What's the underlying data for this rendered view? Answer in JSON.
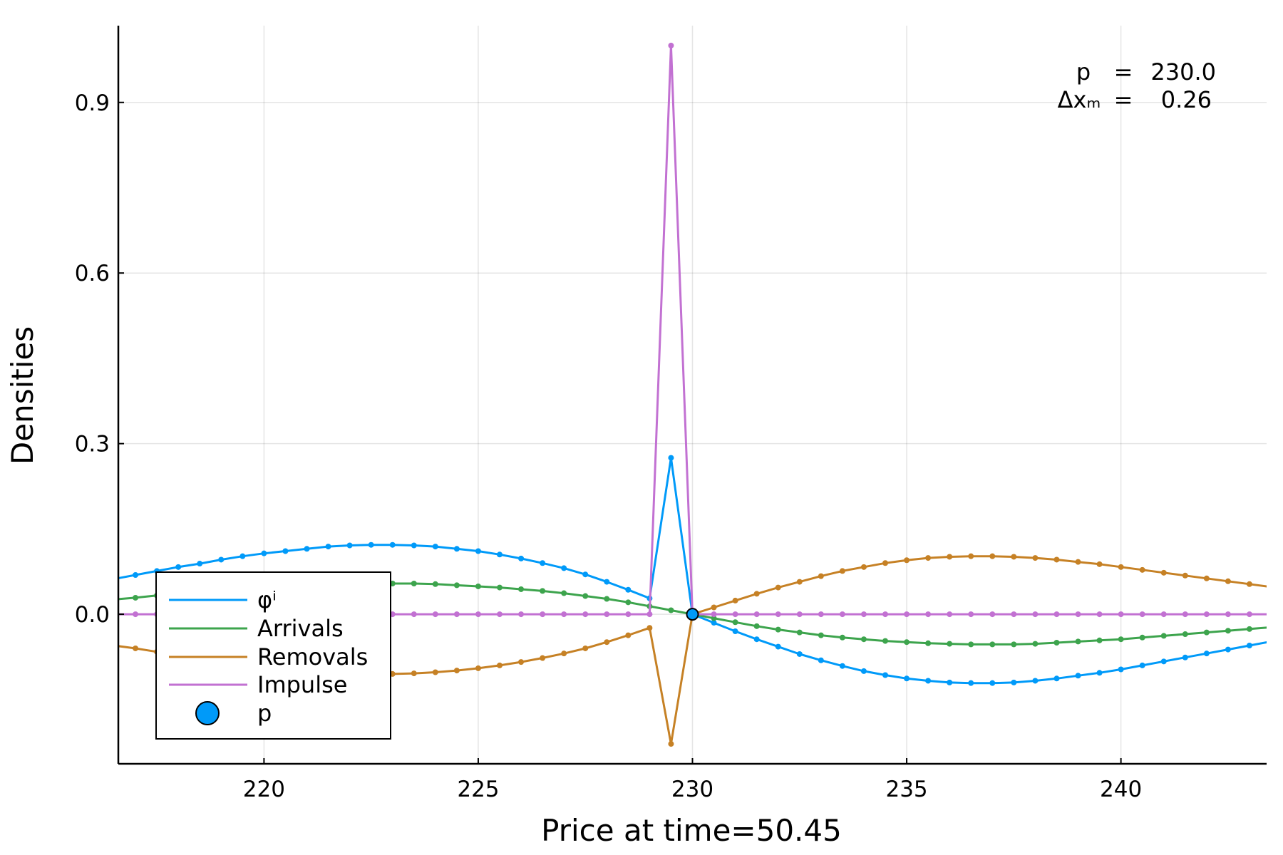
{
  "chart_data": {
    "type": "line",
    "xlabel": "Price at time=50.45",
    "ylabel": "Densities",
    "xlim": [
      216.6,
      243.4
    ],
    "ylim": [
      -0.263,
      1.035
    ],
    "xticks": [
      220,
      225,
      230,
      235,
      240
    ],
    "xtick_labels": [
      "220",
      "225",
      "230",
      "235",
      "240"
    ],
    "yticks": [
      0.0,
      0.3,
      0.6,
      0.9
    ],
    "ytick_labels": [
      "0.0",
      "0.3",
      "0.6",
      "0.9"
    ],
    "grid": true,
    "legend_position": "bottom-left",
    "annotation": {
      "line1_label": "p",
      "line1_sep": "=",
      "line1_value": "230.0",
      "line2_label": "Δxₘ",
      "line2_sep": "=",
      "line2_value": "0.26"
    },
    "x_step": 0.5,
    "series": [
      {
        "name": "φⁱ",
        "color": "#009af9",
        "x": [
          216.5,
          217.0,
          217.5,
          218.0,
          218.5,
          219.0,
          219.5,
          220.0,
          220.5,
          221.0,
          221.5,
          222.0,
          222.5,
          223.0,
          223.5,
          224.0,
          224.5,
          225.0,
          225.5,
          226.0,
          226.5,
          227.0,
          227.5,
          228.0,
          228.5,
          229.0,
          229.5,
          230.0,
          230.5,
          231.0,
          231.5,
          232.0,
          232.5,
          233.0,
          233.5,
          234.0,
          234.5,
          235.0,
          235.5,
          236.0,
          236.5,
          237.0,
          237.5,
          238.0,
          238.5,
          239.0,
          239.5,
          240.0,
          240.5,
          241.0,
          241.5,
          242.0,
          242.5,
          243.0,
          243.5
        ],
        "y": [
          0.062,
          0.069,
          0.076,
          0.083,
          0.089,
          0.096,
          0.102,
          0.107,
          0.111,
          0.115,
          0.119,
          0.121,
          0.122,
          0.122,
          0.121,
          0.119,
          0.115,
          0.111,
          0.105,
          0.098,
          0.09,
          0.081,
          0.07,
          0.057,
          0.043,
          0.028,
          0.275,
          0.0,
          -0.015,
          -0.03,
          -0.044,
          -0.057,
          -0.07,
          -0.081,
          -0.091,
          -0.1,
          -0.107,
          -0.113,
          -0.117,
          -0.12,
          -0.121,
          -0.121,
          -0.12,
          -0.117,
          -0.113,
          -0.108,
          -0.103,
          -0.097,
          -0.09,
          -0.083,
          -0.076,
          -0.069,
          -0.062,
          -0.055,
          -0.048
        ]
      },
      {
        "name": "Arrivals",
        "color": "#3da44d",
        "x": [
          216.5,
          217.0,
          217.5,
          218.0,
          218.5,
          219.0,
          219.5,
          220.0,
          220.5,
          221.0,
          221.5,
          222.0,
          222.5,
          223.0,
          223.5,
          224.0,
          224.5,
          225.0,
          225.5,
          226.0,
          226.5,
          227.0,
          227.5,
          228.0,
          228.5,
          229.0,
          229.5,
          230.0,
          230.5,
          231.0,
          231.5,
          232.0,
          232.5,
          233.0,
          233.5,
          234.0,
          234.5,
          235.0,
          235.5,
          236.0,
          236.5,
          237.0,
          237.5,
          238.0,
          238.5,
          239.0,
          239.5,
          240.0,
          240.5,
          241.0,
          241.5,
          242.0,
          242.5,
          243.0,
          243.5
        ],
        "y": [
          0.026,
          0.029,
          0.033,
          0.036,
          0.039,
          0.042,
          0.045,
          0.048,
          0.05,
          0.052,
          0.053,
          0.054,
          0.054,
          0.054,
          0.054,
          0.053,
          0.051,
          0.049,
          0.047,
          0.044,
          0.041,
          0.037,
          0.032,
          0.027,
          0.021,
          0.014,
          0.007,
          0.0,
          -0.007,
          -0.014,
          -0.021,
          -0.027,
          -0.032,
          -0.037,
          -0.041,
          -0.044,
          -0.047,
          -0.049,
          -0.051,
          -0.052,
          -0.053,
          -0.053,
          -0.053,
          -0.052,
          -0.05,
          -0.048,
          -0.046,
          -0.044,
          -0.041,
          -0.038,
          -0.035,
          -0.032,
          -0.029,
          -0.026,
          -0.023
        ]
      },
      {
        "name": "Removals",
        "color": "#c68125",
        "x": [
          216.5,
          217.0,
          217.5,
          218.0,
          218.5,
          219.0,
          219.5,
          220.0,
          220.5,
          221.0,
          221.5,
          222.0,
          222.5,
          223.0,
          223.5,
          224.0,
          224.5,
          225.0,
          225.5,
          226.0,
          226.5,
          227.0,
          227.5,
          228.0,
          228.5,
          229.0,
          229.5,
          230.0,
          230.5,
          231.0,
          231.5,
          232.0,
          232.5,
          233.0,
          233.5,
          234.0,
          234.5,
          235.0,
          235.5,
          236.0,
          236.5,
          237.0,
          237.5,
          238.0,
          238.5,
          239.0,
          239.5,
          240.0,
          240.5,
          241.0,
          241.5,
          242.0,
          242.5,
          243.0,
          243.5
        ],
        "y": [
          -0.055,
          -0.06,
          -0.066,
          -0.072,
          -0.078,
          -0.083,
          -0.088,
          -0.093,
          -0.097,
          -0.1,
          -0.102,
          -0.104,
          -0.105,
          -0.105,
          -0.104,
          -0.102,
          -0.099,
          -0.095,
          -0.09,
          -0.084,
          -0.077,
          -0.069,
          -0.06,
          -0.049,
          -0.037,
          -0.024,
          -0.228,
          0.0,
          0.012,
          0.024,
          0.036,
          0.047,
          0.057,
          0.067,
          0.076,
          0.083,
          0.09,
          0.095,
          0.099,
          0.101,
          0.102,
          0.102,
          0.101,
          0.099,
          0.096,
          0.092,
          0.088,
          0.083,
          0.078,
          0.073,
          0.068,
          0.063,
          0.058,
          0.053,
          0.048
        ]
      },
      {
        "name": "Impulse",
        "color": "#c271d2",
        "x": [
          216.5,
          217.0,
          217.5,
          218.0,
          218.5,
          219.0,
          219.5,
          220.0,
          220.5,
          221.0,
          221.5,
          222.0,
          222.5,
          223.0,
          223.5,
          224.0,
          224.5,
          225.0,
          225.5,
          226.0,
          226.5,
          227.0,
          227.5,
          228.0,
          228.5,
          229.0,
          229.5,
          230.0,
          230.5,
          231.0,
          231.5,
          232.0,
          232.5,
          233.0,
          233.5,
          234.0,
          234.5,
          235.0,
          235.5,
          236.0,
          236.5,
          237.0,
          237.5,
          238.0,
          238.5,
          239.0,
          239.5,
          240.0,
          240.5,
          241.0,
          241.5,
          242.0,
          242.5,
          243.0,
          243.5
        ],
        "y": [
          0,
          0,
          0,
          0,
          0,
          0,
          0,
          0,
          0,
          0,
          0,
          0,
          0,
          0,
          0,
          0,
          0,
          0,
          0,
          0,
          0,
          0,
          0,
          0,
          0,
          0,
          1.0,
          0,
          0,
          0,
          0,
          0,
          0,
          0,
          0,
          0,
          0,
          0,
          0,
          0,
          0,
          0,
          0,
          0,
          0,
          0,
          0,
          0,
          0,
          0,
          0,
          0,
          0,
          0,
          0
        ]
      }
    ],
    "point": {
      "name": "p",
      "x": 230.0,
      "y": 0.0,
      "color": "#009af9"
    }
  }
}
